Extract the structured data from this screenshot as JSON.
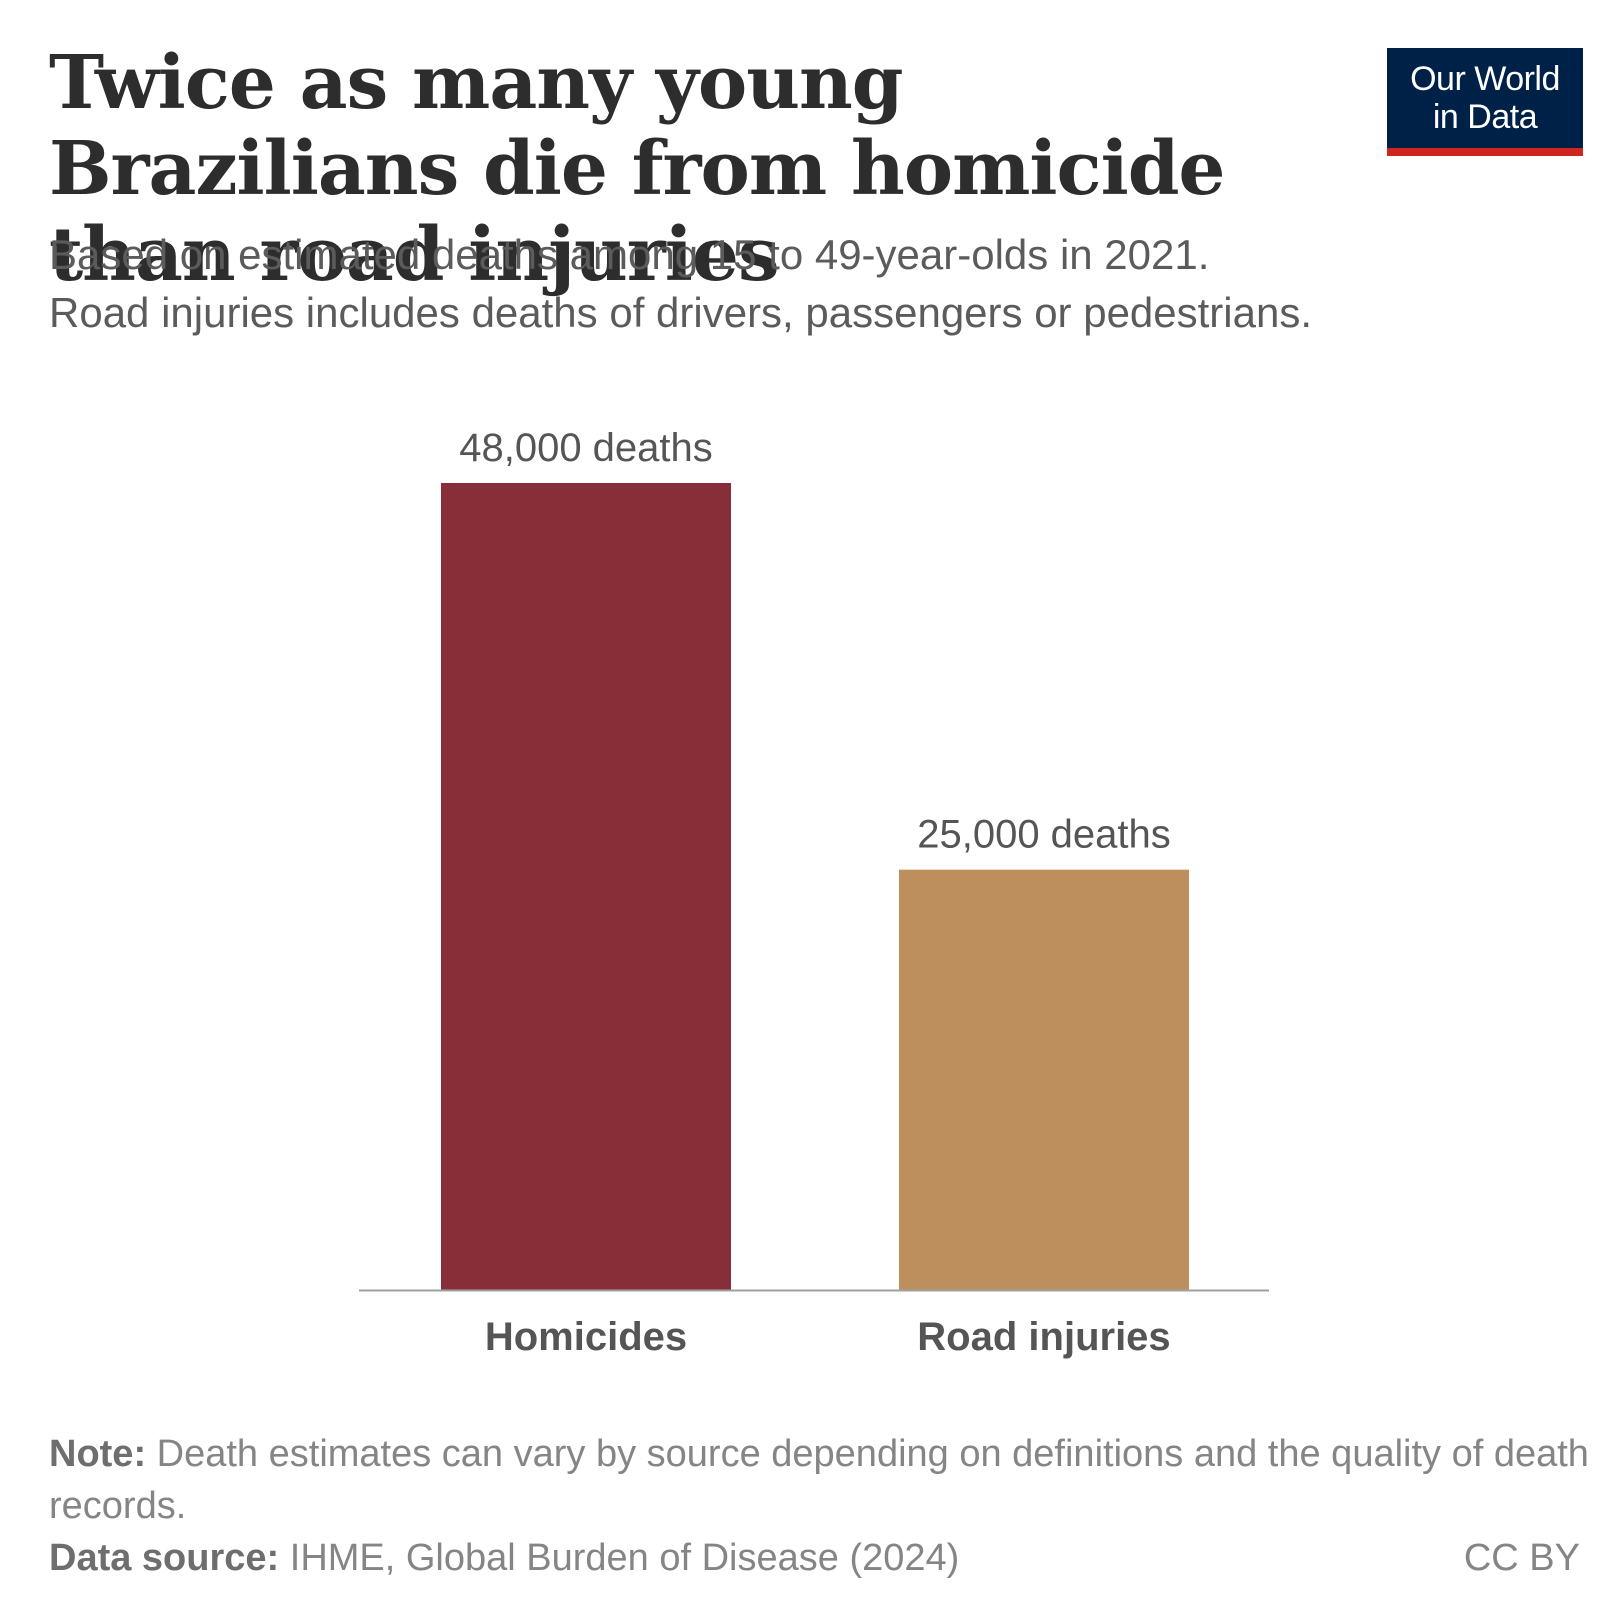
{
  "header": {
    "title": "Twice as many young Brazilians die from homicide than road injuries",
    "subtitle_line1": "Based on estimated deaths among 15 to 49-year-olds in 2021.",
    "subtitle_line2": "Road injuries includes deaths of drivers, passengers or pedestrians."
  },
  "logo": {
    "line1": "Our World",
    "line2": "in Data"
  },
  "chart_data": {
    "type": "bar",
    "categories": [
      "Homicides",
      "Road injuries"
    ],
    "values": [
      48000,
      25000
    ],
    "data_labels": [
      "48,000 deaths",
      "25,000 deaths"
    ],
    "colors": [
      "#882e38",
      "#bd8f5d"
    ],
    "title": "Twice as many young Brazilians die from homicide than road injuries",
    "xlabel": "",
    "ylabel": "",
    "ylim": [
      0,
      48000
    ],
    "grid": false,
    "legend": "none"
  },
  "footer": {
    "note_label": "Note:",
    "note_text": " Death estimates can vary by source depending on definitions and the quality of death records.",
    "source_label": "Data source:",
    "source_text": " IHME, Global Burden of Disease (2024)",
    "license": "CC BY"
  }
}
